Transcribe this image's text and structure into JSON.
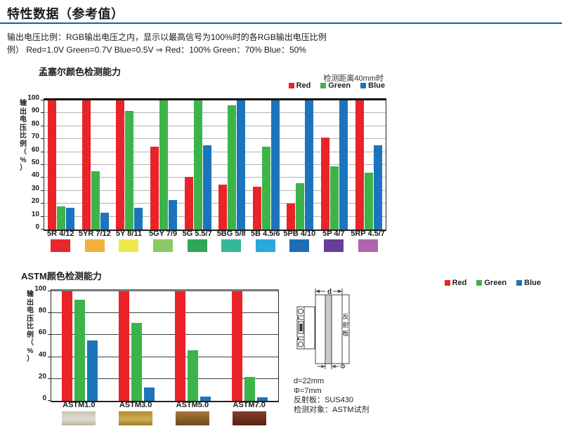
{
  "page": {
    "title": "特性数据（参考值）",
    "intro_line1": "输出电压比例：RGB输出电压之内，显示以最高信号为100%时的各RGB输出电压比例",
    "intro_line2": "例） Red=1.0V Green=0.7V Blue=0.5V ⇒ Red：100% Green：70% Blue：50%"
  },
  "colors": {
    "title_underline": "#0068b7",
    "series_red": "#ea2328",
    "series_green": "#3cb44a",
    "series_blue": "#1c75bc"
  },
  "chart_data": [
    {
      "type": "bar",
      "title": "孟塞尔颜色检测能力",
      "note": "检测距离40mm时",
      "ylabel": "输出电压比例（%）",
      "ylim": [
        0,
        100
      ],
      "ystep": 10,
      "grid": true,
      "legend_position": "top-right",
      "categories": [
        "5R 4/12",
        "5YR 7/12",
        "5Y 8/11",
        "5GY 7/9",
        "5G 5.5/7",
        "5BG 5/8",
        "5B 4.5/6",
        "5PB 4/10",
        "5P 4/7",
        "5RP 4.5/7"
      ],
      "series": [
        {
          "name": "Red",
          "color": "#ea2328",
          "values": [
            100,
            100,
            100,
            64,
            41,
            35,
            33,
            20,
            71,
            100
          ]
        },
        {
          "name": "Green",
          "color": "#3cb44a",
          "values": [
            18,
            45,
            92,
            100,
            100,
            96,
            64,
            36,
            49,
            44
          ]
        },
        {
          "name": "Blue",
          "color": "#1c75bc",
          "values": [
            17,
            13,
            17,
            23,
            65,
            100,
            100,
            100,
            100,
            65
          ]
        }
      ],
      "swatches": [
        "#e8282c",
        "#f2b03c",
        "#ece94f",
        "#8bc764",
        "#2ea758",
        "#35b896",
        "#29a9dc",
        "#1e6eb4",
        "#6a3d96",
        "#b066ad"
      ]
    },
    {
      "type": "bar",
      "title": "ASTM颜色检测能力",
      "note": "",
      "ylabel": "输出电压比例（%）",
      "ylim": [
        0,
        100
      ],
      "ystep": 20,
      "grid": true,
      "legend_position": "top-right",
      "categories": [
        "ASTM1.0",
        "ASTM3.0",
        "ASTM5.0",
        "ASTM7.0"
      ],
      "series": [
        {
          "name": "Red",
          "color": "#ea2328",
          "values": [
            100,
            100,
            100,
            100
          ]
        },
        {
          "name": "Green",
          "color": "#3cb44a",
          "values": [
            92,
            71,
            46,
            22
          ]
        },
        {
          "name": "Blue",
          "color": "#1c75bc",
          "values": [
            55,
            12,
            4,
            3
          ]
        }
      ],
      "swatch_gradients": [
        [
          "#c9c5b4",
          "#e0dccd",
          "#b9b5a2"
        ],
        [
          "#b08a2e",
          "#cfae55",
          "#9d7a24"
        ],
        [
          "#a5793a",
          "#8a5f28",
          "#6e4a1c"
        ],
        [
          "#82402a",
          "#6e2f1a",
          "#571f10"
        ]
      ]
    }
  ],
  "diagram": {
    "dim_d_label": "d",
    "dim_phi_label": "Φ",
    "reflector_chars": [
      "反",
      "射",
      "板"
    ],
    "notes": [
      "d=22mm",
      "Φ=7mm",
      "反射板：SUS430",
      "检测对象：ASTM试剂"
    ]
  }
}
